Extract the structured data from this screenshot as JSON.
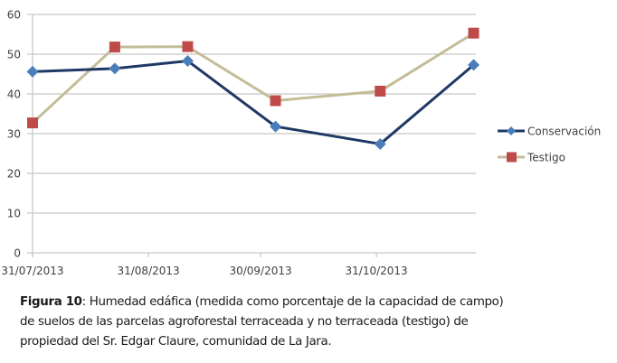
{
  "chart_data": {
    "type": "line",
    "title": "",
    "xlabel": "",
    "ylabel": "",
    "x_axis_type": "date",
    "x_dates": [
      "31/07/2013",
      "22/08/2013",
      "10/09/2013",
      "04/10/2013",
      "01/11/2013",
      "26/11/2013"
    ],
    "x_days_from_start": [
      0,
      22,
      41.5,
      65,
      93,
      118
    ],
    "xlim_days": [
      0,
      118.6
    ],
    "xticks": [
      {
        "label": "31/07/2013",
        "day": 0
      },
      {
        "label": "31/08/2013",
        "day": 31
      },
      {
        "label": "30/09/2013",
        "day": 61
      },
      {
        "label": "31/10/2013",
        "day": 92
      }
    ],
    "ylim": [
      0,
      60
    ],
    "yticks": [
      0,
      10,
      20,
      30,
      40,
      50,
      60
    ],
    "grid": true,
    "legend_position": "right",
    "series": [
      {
        "name": "Conservación",
        "color": "#1f3864",
        "marker": "diamond",
        "marker_color": "#4a7ebb",
        "values": [
          45.6,
          46.4,
          48.3,
          31.8,
          27.4,
          47.3
        ]
      },
      {
        "name": "Testigo",
        "color": "#c4bd97",
        "marker": "square",
        "marker_color": "#be4b48",
        "values": [
          32.7,
          51.8,
          51.9,
          38.3,
          40.7,
          55.3
        ]
      }
    ]
  },
  "caption": {
    "label": "Figura 10",
    "line1": ": Humedad edáfica (medida como porcentaje de la capacidad de campo)",
    "line2": "de suelos de las parcelas agroforestal terraceada y no terraceada (testigo) de",
    "line3": "propiedad del Sr. Edgar Claure, comunidad de La Jara."
  }
}
